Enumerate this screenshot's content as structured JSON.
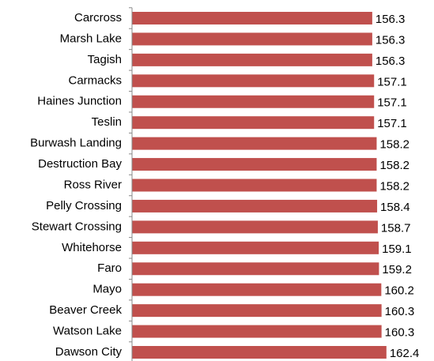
{
  "chart_data": {
    "type": "barh",
    "categories": [
      "Carcross",
      "Marsh Lake",
      "Tagish",
      "Carmacks",
      "Haines Junction",
      "Teslin",
      "Burwash Landing",
      "Destruction Bay",
      "Ross River",
      "Pelly Crossing",
      "Stewart Crossing",
      "Whitehorse",
      "Faro",
      "Mayo",
      "Beaver Creek",
      "Watson Lake",
      "Dawson City"
    ],
    "values": [
      156.3,
      156.3,
      156.3,
      157.1,
      157.1,
      157.1,
      158.2,
      158.2,
      158.2,
      158.4,
      158.7,
      159.1,
      159.2,
      160.2,
      160.3,
      160.3,
      162.4
    ],
    "value_labels": [
      "156.3",
      "156.3",
      "156.3",
      "157.1",
      "157.1",
      "157.1",
      "158.2",
      "158.2",
      "158.2",
      "158.4",
      "158.7",
      "159.1",
      "159.2",
      "160.2",
      "160.3",
      "160.3",
      "162.4"
    ],
    "color": "#c0504d",
    "xlim": [
      53,
      173
    ]
  }
}
